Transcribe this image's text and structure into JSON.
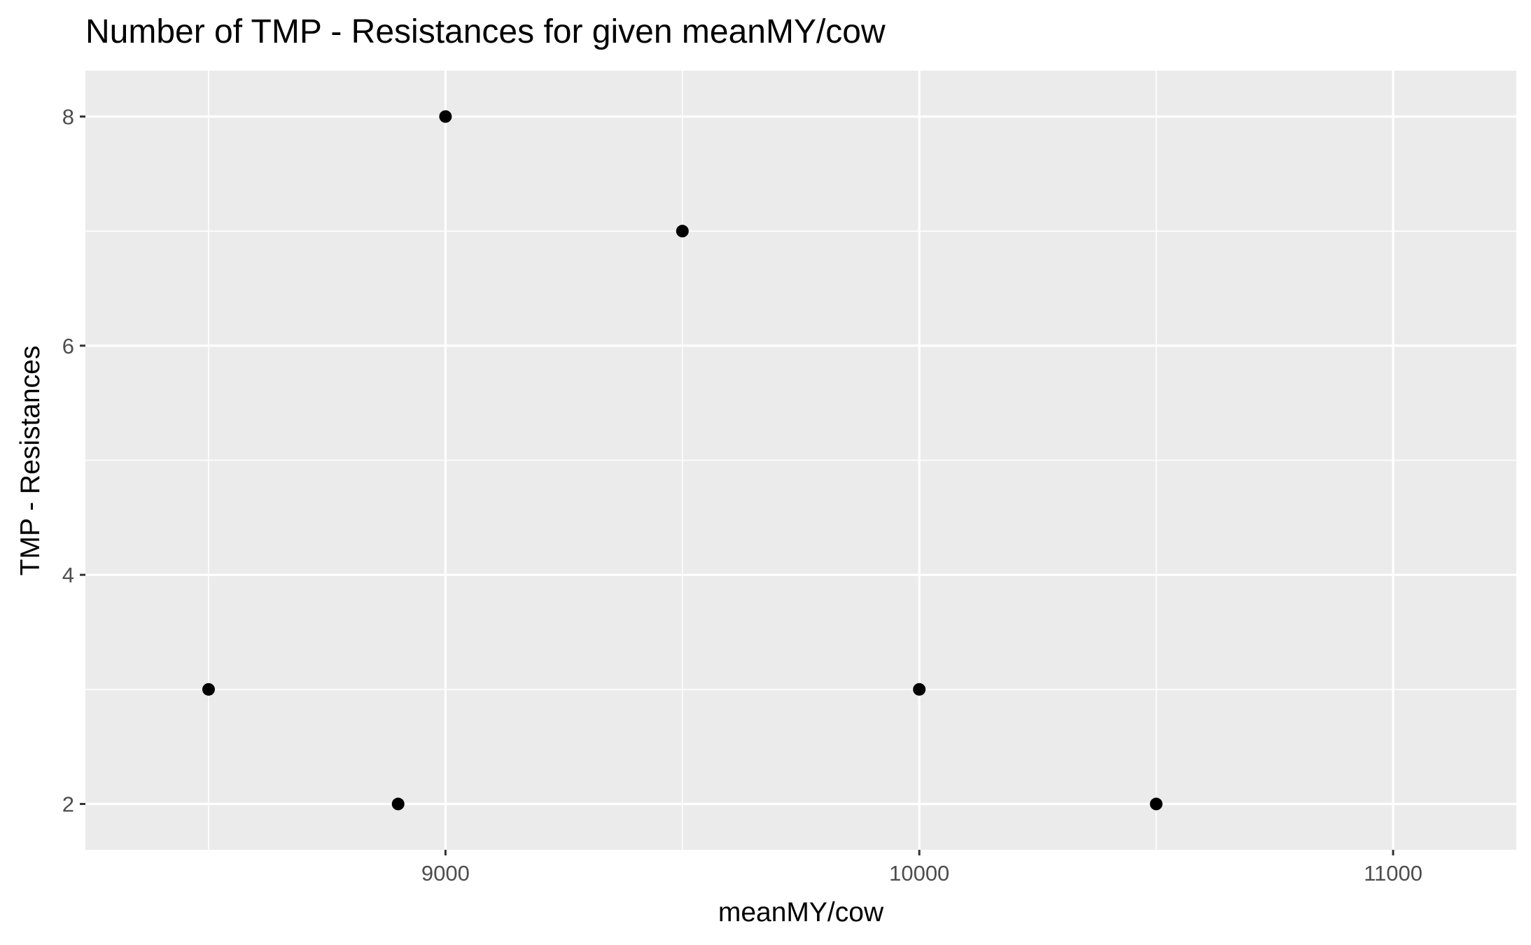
{
  "chart_data": {
    "type": "scatter",
    "title": "Number of TMP - Resistances for given meanMY/cow",
    "xlabel": "meanMY/cow",
    "ylabel": "TMP - Resistances",
    "xlim": [
      8240,
      11260
    ],
    "ylim": [
      1.6,
      8.4
    ],
    "x_ticks": [
      9000,
      10000,
      11000
    ],
    "x_minor_ticks": [
      8500,
      9500,
      10500
    ],
    "y_ticks": [
      2,
      4,
      6,
      8
    ],
    "y_minor_ticks": [
      3,
      5,
      7
    ],
    "grid": true,
    "points": [
      {
        "x": 8500,
        "y": 3
      },
      {
        "x": 8900,
        "y": 2
      },
      {
        "x": 9000,
        "y": 8
      },
      {
        "x": 9500,
        "y": 7
      },
      {
        "x": 10000,
        "y": 3
      },
      {
        "x": 10500,
        "y": 2
      }
    ],
    "colors": {
      "panel": "#ebebeb",
      "grid": "#ffffff",
      "point": "#000000",
      "tick_text": "#4d4d4d",
      "tick_mark": "#333333"
    }
  }
}
